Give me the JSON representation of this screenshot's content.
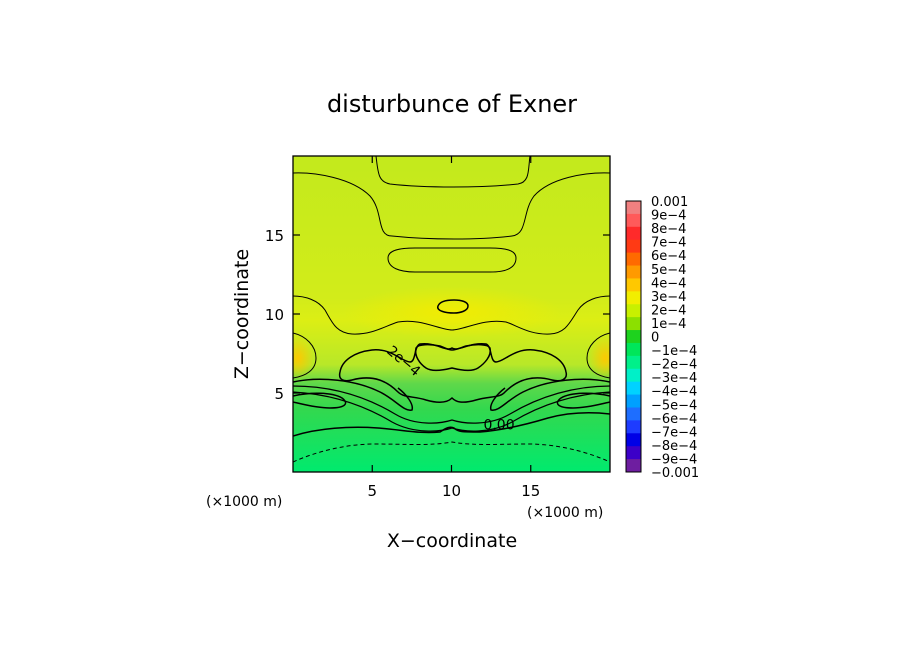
{
  "chart_data": {
    "type": "heatmap",
    "title": "disturbunce of Exner",
    "xlabel": "X−coordinate",
    "ylabel": "Z−coordinate",
    "x_unit": "(×1000 m)",
    "z_unit": "(×1000 m)",
    "xlim": [
      0,
      20
    ],
    "ylim": [
      0,
      20
    ],
    "x_ticks": [
      "5",
      "10",
      "15"
    ],
    "y_ticks": [
      "5",
      "10",
      "15"
    ],
    "x_tick_values": [
      5,
      10,
      15
    ],
    "y_tick_values": [
      5,
      10,
      15
    ],
    "colorbar": {
      "min": -0.001,
      "max": 0.001,
      "labels": [
        "0.001",
        "9e−4",
        "8e−4",
        "7e−4",
        "6e−4",
        "5e−4",
        "4e−4",
        "3e−4",
        "2e−4",
        "1e−4",
        "0",
        "−1e−4",
        "−2e−4",
        "−3e−4",
        "−4e−4",
        "−5e−4",
        "−6e−4",
        "−7e−4",
        "−8e−4",
        "−9e−4",
        "−0.001"
      ],
      "colors": [
        "#f08080",
        "#ff5a5a",
        "#ff2a2a",
        "#ff3a14",
        "#ff6a00",
        "#ff9a00",
        "#ffc800",
        "#f2ee00",
        "#c8f000",
        "#8ce000",
        "#1ed21e",
        "#00e65a",
        "#00f08a",
        "#00f0c8",
        "#00d2ff",
        "#00a0ff",
        "#1e6eff",
        "#1e3cff",
        "#0000e6",
        "#3c00c8",
        "#6e1ea0"
      ]
    },
    "contour_labels": [
      {
        "text": "2e−4",
        "x": 6.8,
        "z": 6.8,
        "angle": 40
      },
      {
        "text": "0.00",
        "x": 13.0,
        "z": 2.7,
        "angle": 0
      }
    ]
  }
}
